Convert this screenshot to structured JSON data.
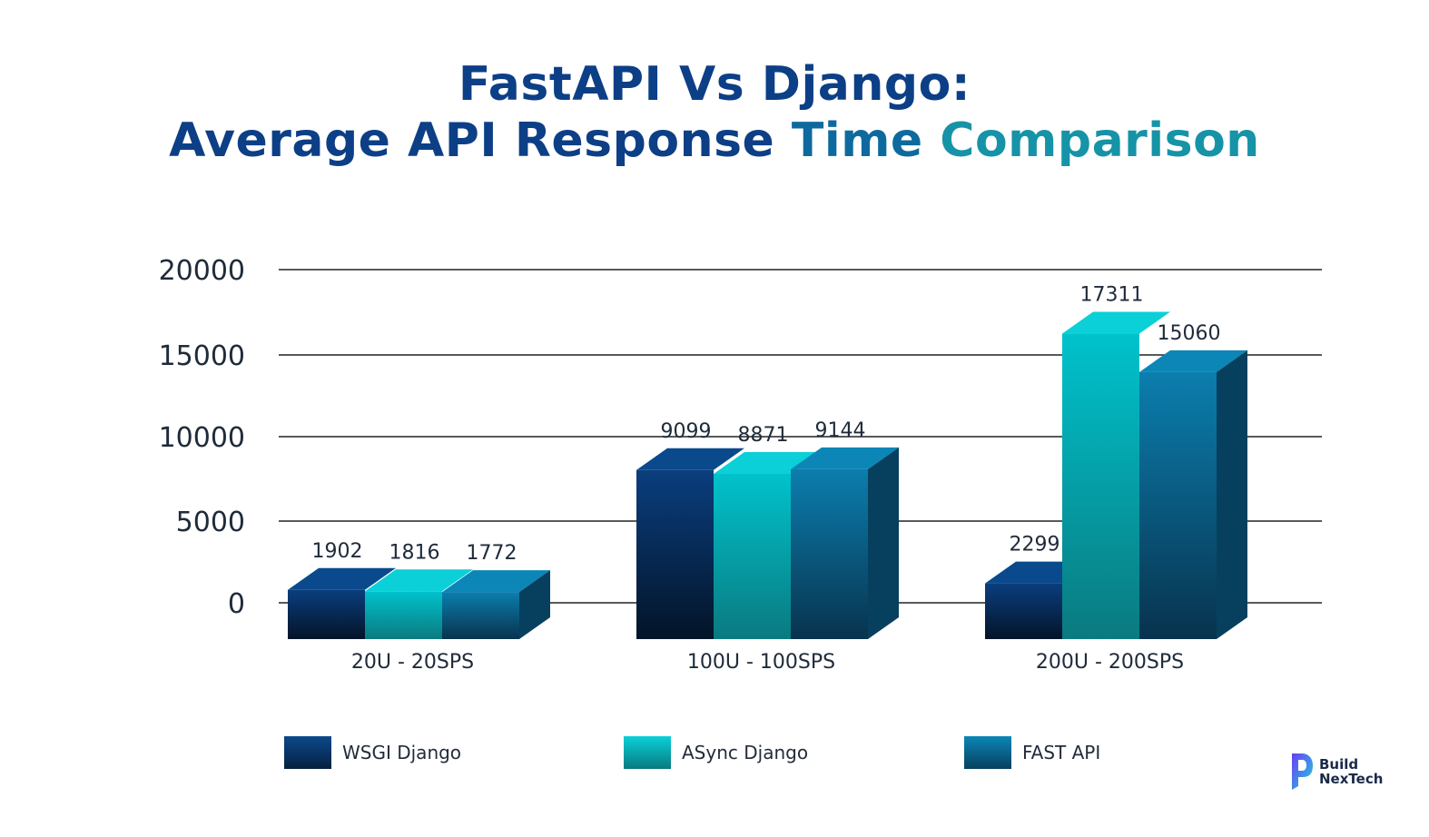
{
  "title": {
    "line1": "FastAPI Vs Django:",
    "line2_part1": "Average API Response",
    "line2_part2": "Time",
    "line2_part3": "Comparison"
  },
  "chart_data": {
    "type": "bar",
    "title": "FastAPI Vs Django: Average API Response Time Comparison",
    "xlabel": "",
    "ylabel": "",
    "categories": [
      "20U - 20SPS",
      "100U - 100SPS",
      "200U - 200SPS"
    ],
    "series": [
      {
        "name": "WSGI Django",
        "values": [
          1902,
          9099,
          2299
        ]
      },
      {
        "name": "ASync Django",
        "values": [
          1816,
          8871,
          17311
        ]
      },
      {
        "name": "FAST API",
        "values": [
          1772,
          9144,
          15060
        ]
      }
    ],
    "yticks": [
      0,
      5000,
      10000,
      15000,
      20000
    ],
    "ytick_labels": [
      "0",
      "5000",
      "10000",
      "15000",
      "20000"
    ],
    "ylim": [
      0,
      20000
    ],
    "grid": true,
    "legend": "bottom"
  },
  "legend": [
    {
      "label": "WSGI Django",
      "color": "#0a2a52"
    },
    {
      "label": "ASync Django",
      "color": "#0d8e97"
    },
    {
      "label": "FAST API",
      "color": "#0d5a80"
    }
  ],
  "colors": {
    "wsgi_top": "#0a3e7e",
    "wsgi_bottom": "#041428",
    "async_top": "#00c2cc",
    "async_bottom": "#0a7a80",
    "fast_top": "#0b7eae",
    "fast_bottom": "#08334e",
    "grid": "#222222",
    "label": "#1f2b3a"
  },
  "logo": {
    "line1": "Build",
    "line2": "NexTech",
    "icon": "build-nextech-logo-icon"
  }
}
